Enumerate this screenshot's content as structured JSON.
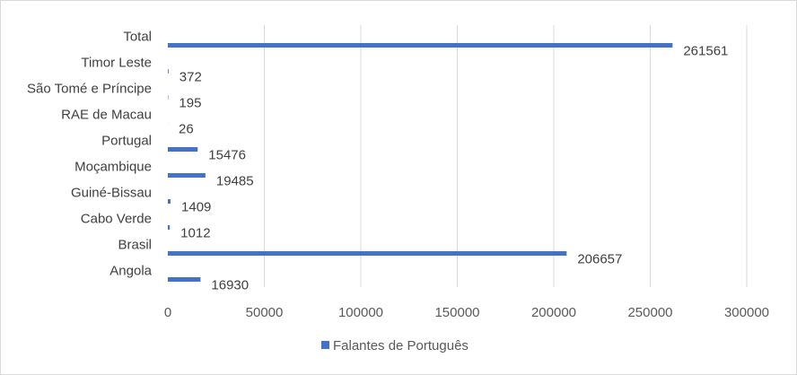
{
  "chart_data": {
    "type": "bar",
    "orientation": "horizontal",
    "categories": [
      "Angola",
      "Brasil",
      "Cabo Verde",
      "Guiné-Bissau",
      "Moçambique",
      "Portugal",
      "RAE de Macau",
      "São Tomé e Príncipe",
      "Timor Leste",
      "Total"
    ],
    "series": [
      {
        "name": "Falantes de Português",
        "color": "#4472c4",
        "values": [
          16930,
          206657,
          1012,
          1409,
          19485,
          15476,
          26,
          195,
          372,
          261561
        ]
      }
    ],
    "data_labels": [
      "16930",
      "206657",
      "1012",
      "1409",
      "19485",
      "15476",
      "26",
      "195",
      "372",
      "261561"
    ],
    "xlim": [
      0,
      300000
    ],
    "x_ticks": [
      0,
      50000,
      100000,
      150000,
      200000,
      250000,
      300000
    ],
    "x_tick_labels": [
      "0",
      "50000",
      "100000",
      "150000",
      "200000",
      "250000",
      "300000"
    ],
    "title": "",
    "xlabel": "",
    "ylabel": "",
    "grid": "vertical",
    "legend_position": "bottom"
  }
}
